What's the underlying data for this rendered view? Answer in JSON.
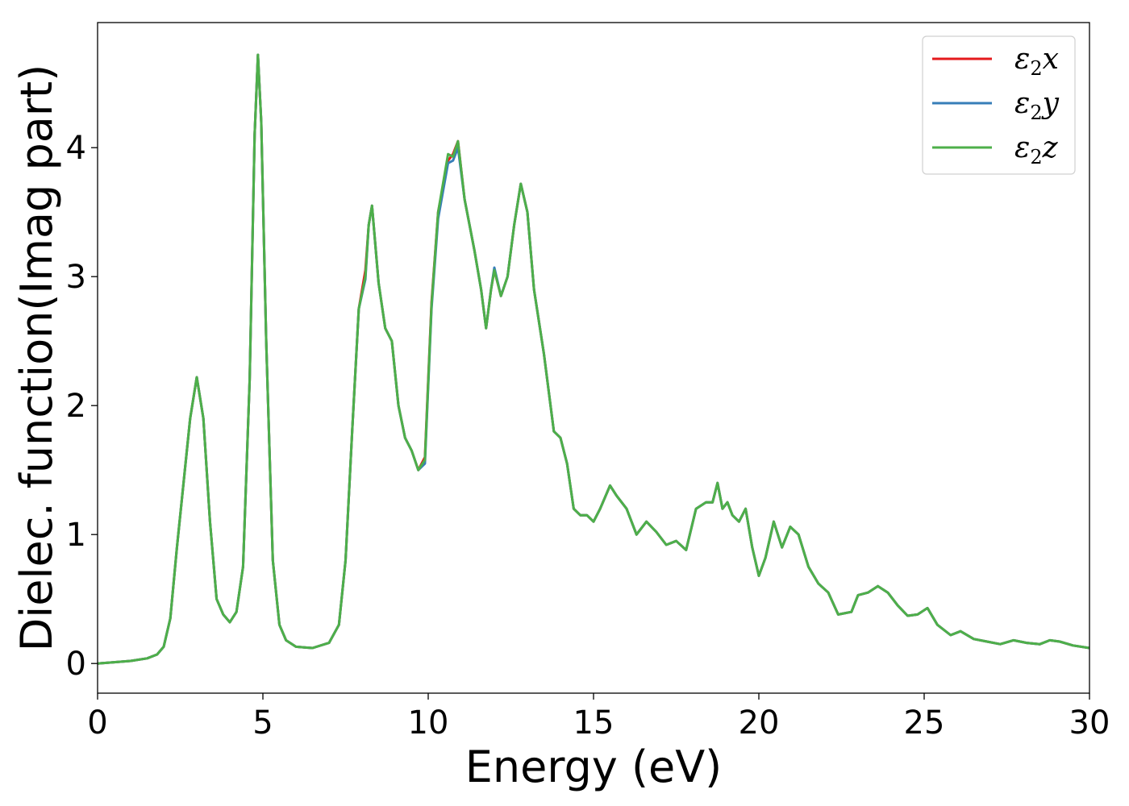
{
  "chart_data": {
    "type": "line",
    "xlabel": "Energy (eV)",
    "ylabel": "Dielec. function(Imag part)",
    "xlim": [
      0,
      30
    ],
    "ylim": [
      -0.23,
      4.97
    ],
    "xticks": [
      0,
      5,
      10,
      15,
      20,
      25,
      30
    ],
    "yticks": [
      0,
      1,
      2,
      3,
      4
    ],
    "grid": false,
    "legend_position": "top-right",
    "series": [
      {
        "name": "ε₂x",
        "legend_main": "ε",
        "legend_sub": "2",
        "legend_var": "x",
        "color": "#e41a1c",
        "x": [
          0,
          0.5,
          1,
          1.5,
          1.8,
          2,
          2.2,
          2.4,
          2.6,
          2.8,
          3,
          3.2,
          3.4,
          3.6,
          3.8,
          4,
          4.2,
          4.4,
          4.6,
          4.75,
          4.85,
          4.95,
          5.1,
          5.3,
          5.5,
          5.7,
          6,
          6.5,
          7,
          7.3,
          7.5,
          7.7,
          7.9,
          8.1,
          8.2,
          8.3,
          8.5,
          8.7,
          8.9,
          9.1,
          9.3,
          9.5,
          9.7,
          9.9,
          10.1,
          10.3,
          10.6,
          10.75,
          10.9,
          11.1,
          11.4,
          11.6,
          11.75,
          11.9,
          12,
          12.2,
          12.4,
          12.6,
          12.8,
          13,
          13.2,
          13.5,
          13.8,
          14,
          14.2,
          14.4,
          14.6,
          14.8,
          15,
          15.2,
          15.5,
          15.7,
          16,
          16.3,
          16.6,
          16.9,
          17.2,
          17.5,
          17.8,
          18.1,
          18.4,
          18.6,
          18.75,
          18.9,
          19.05,
          19.2,
          19.4,
          19.6,
          19.8,
          20,
          20.2,
          20.45,
          20.7,
          20.95,
          21.2,
          21.5,
          21.8,
          22.1,
          22.4,
          22.8,
          23,
          23.3,
          23.6,
          23.9,
          24.2,
          24.5,
          24.8,
          25.1,
          25.4,
          25.8,
          26.1,
          26.5,
          26.9,
          27.3,
          27.7,
          28.1,
          28.5,
          28.8,
          29.1,
          29.5,
          30
        ],
        "values": [
          0,
          0.01,
          0.02,
          0.04,
          0.07,
          0.13,
          0.35,
          0.9,
          1.4,
          1.9,
          2.22,
          1.9,
          1.1,
          0.5,
          0.38,
          0.32,
          0.4,
          0.75,
          2.2,
          4.1,
          4.72,
          4.2,
          2.5,
          0.8,
          0.3,
          0.18,
          0.13,
          0.12,
          0.16,
          0.3,
          0.8,
          1.8,
          2.75,
          3.05,
          3.4,
          3.55,
          2.95,
          2.6,
          2.5,
          2.0,
          1.75,
          1.65,
          1.5,
          1.6,
          2.8,
          3.5,
          3.9,
          3.95,
          4.05,
          3.6,
          3.2,
          2.9,
          2.6,
          2.9,
          3.05,
          2.85,
          3.0,
          3.4,
          3.72,
          3.5,
          2.9,
          2.4,
          1.8,
          1.75,
          1.55,
          1.2,
          1.15,
          1.15,
          1.1,
          1.2,
          1.38,
          1.3,
          1.2,
          1.0,
          1.1,
          1.02,
          0.92,
          0.95,
          0.88,
          1.2,
          1.25,
          1.25,
          1.4,
          1.2,
          1.25,
          1.15,
          1.1,
          1.2,
          0.9,
          0.68,
          0.82,
          1.1,
          0.9,
          1.06,
          1.0,
          0.75,
          0.62,
          0.55,
          0.38,
          0.4,
          0.53,
          0.55,
          0.6,
          0.55,
          0.45,
          0.37,
          0.38,
          0.43,
          0.3,
          0.22,
          0.25,
          0.19,
          0.17,
          0.15,
          0.18,
          0.16,
          0.15,
          0.18,
          0.17,
          0.14,
          0.12
        ]
      },
      {
        "name": "ε₂y",
        "legend_main": "ε",
        "legend_sub": "2",
        "legend_var": "y",
        "color": "#377eb8",
        "x": [
          0,
          0.5,
          1,
          1.5,
          1.8,
          2,
          2.2,
          2.4,
          2.6,
          2.8,
          3,
          3.2,
          3.4,
          3.6,
          3.8,
          4,
          4.2,
          4.4,
          4.6,
          4.75,
          4.85,
          4.95,
          5.1,
          5.3,
          5.5,
          5.7,
          6,
          6.5,
          7,
          7.3,
          7.5,
          7.7,
          7.9,
          8.1,
          8.2,
          8.3,
          8.5,
          8.7,
          8.9,
          9.1,
          9.3,
          9.5,
          9.7,
          9.9,
          10.1,
          10.3,
          10.6,
          10.75,
          10.9,
          11.1,
          11.4,
          11.6,
          11.75,
          11.9,
          12,
          12.2,
          12.4,
          12.6,
          12.8,
          13,
          13.2,
          13.5,
          13.8,
          14,
          14.2,
          14.4,
          14.6,
          14.8,
          15,
          15.2,
          15.5,
          15.7,
          16,
          16.3,
          16.6,
          16.9,
          17.2,
          17.5,
          17.8,
          18.1,
          18.4,
          18.6,
          18.75,
          18.9,
          19.05,
          19.2,
          19.4,
          19.6,
          19.8,
          20,
          20.2,
          20.45,
          20.7,
          20.95,
          21.2,
          21.5,
          21.8,
          22.1,
          22.4,
          22.8,
          23,
          23.3,
          23.6,
          23.9,
          24.2,
          24.5,
          24.8,
          25.1,
          25.4,
          25.8,
          26.1,
          26.5,
          26.9,
          27.3,
          27.7,
          28.1,
          28.5,
          28.8,
          29.1,
          29.5,
          30
        ],
        "values": [
          0,
          0.01,
          0.02,
          0.04,
          0.07,
          0.13,
          0.35,
          0.9,
          1.4,
          1.9,
          2.22,
          1.9,
          1.1,
          0.5,
          0.38,
          0.32,
          0.4,
          0.75,
          2.2,
          4.1,
          4.72,
          4.2,
          2.5,
          0.8,
          0.3,
          0.18,
          0.13,
          0.12,
          0.16,
          0.3,
          0.8,
          1.8,
          2.75,
          2.98,
          3.4,
          3.55,
          2.95,
          2.6,
          2.5,
          2.0,
          1.75,
          1.65,
          1.5,
          1.55,
          2.75,
          3.45,
          3.88,
          3.9,
          4.0,
          3.6,
          3.2,
          2.9,
          2.6,
          2.9,
          3.07,
          2.85,
          3.0,
          3.4,
          3.72,
          3.5,
          2.9,
          2.4,
          1.8,
          1.75,
          1.55,
          1.2,
          1.15,
          1.15,
          1.1,
          1.2,
          1.38,
          1.3,
          1.2,
          1.0,
          1.1,
          1.02,
          0.92,
          0.95,
          0.88,
          1.2,
          1.25,
          1.25,
          1.4,
          1.2,
          1.25,
          1.15,
          1.1,
          1.2,
          0.9,
          0.68,
          0.82,
          1.1,
          0.9,
          1.06,
          1.0,
          0.75,
          0.62,
          0.55,
          0.38,
          0.4,
          0.53,
          0.55,
          0.6,
          0.55,
          0.45,
          0.37,
          0.38,
          0.43,
          0.3,
          0.22,
          0.25,
          0.19,
          0.17,
          0.15,
          0.18,
          0.16,
          0.15,
          0.18,
          0.17,
          0.14,
          0.12
        ]
      },
      {
        "name": "ε₂z",
        "legend_main": "ε",
        "legend_sub": "2",
        "legend_var": "z",
        "color": "#4daf4a",
        "x": [
          0,
          0.5,
          1,
          1.5,
          1.8,
          2,
          2.2,
          2.4,
          2.6,
          2.8,
          3,
          3.2,
          3.4,
          3.6,
          3.8,
          4,
          4.2,
          4.4,
          4.6,
          4.75,
          4.85,
          4.95,
          5.1,
          5.3,
          5.5,
          5.7,
          6,
          6.5,
          7,
          7.3,
          7.5,
          7.7,
          7.9,
          8.1,
          8.2,
          8.3,
          8.5,
          8.7,
          8.9,
          9.1,
          9.3,
          9.5,
          9.7,
          9.9,
          10.1,
          10.3,
          10.6,
          10.75,
          10.9,
          11.1,
          11.4,
          11.6,
          11.75,
          11.9,
          12,
          12.2,
          12.4,
          12.6,
          12.8,
          13,
          13.2,
          13.5,
          13.8,
          14,
          14.2,
          14.4,
          14.6,
          14.8,
          15,
          15.2,
          15.5,
          15.7,
          16,
          16.3,
          16.6,
          16.9,
          17.2,
          17.5,
          17.8,
          18.1,
          18.4,
          18.6,
          18.75,
          18.9,
          19.05,
          19.2,
          19.4,
          19.6,
          19.8,
          20,
          20.2,
          20.45,
          20.7,
          20.95,
          21.2,
          21.5,
          21.8,
          22.1,
          22.4,
          22.8,
          23,
          23.3,
          23.6,
          23.9,
          24.2,
          24.5,
          24.8,
          25.1,
          25.4,
          25.8,
          26.1,
          26.5,
          26.9,
          27.3,
          27.7,
          28.1,
          28.5,
          28.8,
          29.1,
          29.5,
          30
        ],
        "values": [
          0,
          0.01,
          0.02,
          0.04,
          0.07,
          0.13,
          0.35,
          0.9,
          1.4,
          1.9,
          2.22,
          1.9,
          1.1,
          0.5,
          0.38,
          0.32,
          0.4,
          0.75,
          2.2,
          4.1,
          4.72,
          4.2,
          2.5,
          0.8,
          0.3,
          0.18,
          0.13,
          0.12,
          0.16,
          0.3,
          0.8,
          1.8,
          2.75,
          3.0,
          3.4,
          3.55,
          2.95,
          2.6,
          2.5,
          2.0,
          1.75,
          1.65,
          1.5,
          1.58,
          2.78,
          3.5,
          3.95,
          3.93,
          4.05,
          3.6,
          3.2,
          2.9,
          2.6,
          2.9,
          3.05,
          2.85,
          3.0,
          3.4,
          3.72,
          3.5,
          2.9,
          2.4,
          1.8,
          1.75,
          1.55,
          1.2,
          1.15,
          1.15,
          1.1,
          1.2,
          1.38,
          1.3,
          1.2,
          1.0,
          1.1,
          1.02,
          0.92,
          0.95,
          0.88,
          1.2,
          1.25,
          1.25,
          1.4,
          1.2,
          1.25,
          1.15,
          1.1,
          1.2,
          0.9,
          0.68,
          0.82,
          1.1,
          0.9,
          1.06,
          1.0,
          0.75,
          0.62,
          0.55,
          0.38,
          0.4,
          0.53,
          0.55,
          0.6,
          0.55,
          0.45,
          0.37,
          0.38,
          0.43,
          0.3,
          0.22,
          0.25,
          0.19,
          0.17,
          0.15,
          0.18,
          0.16,
          0.15,
          0.18,
          0.17,
          0.14,
          0.12
        ]
      }
    ]
  }
}
